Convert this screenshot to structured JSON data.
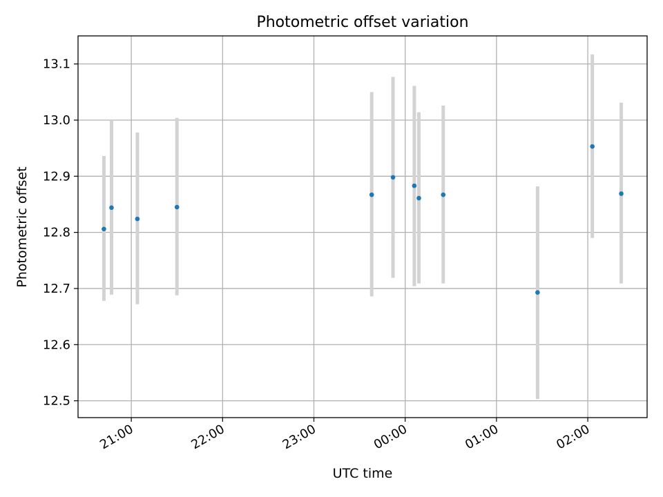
{
  "chart_data": {
    "type": "scatter",
    "title": "Photometric offset variation",
    "xlabel": "UTC time",
    "ylabel": "Photometric offset",
    "x_unit": "UTC time (HH:MM)",
    "xlim": [
      "20:25",
      "02:39"
    ],
    "ylim": [
      12.47,
      13.15
    ],
    "grid": true,
    "x_ticks": [
      "21:00",
      "22:00",
      "23:00",
      "00:00",
      "01:00",
      "02:00"
    ],
    "y_ticks": [
      "12.5",
      "12.6",
      "12.7",
      "12.8",
      "12.9",
      "13.0",
      "13.1"
    ],
    "series": [
      {
        "marker_color": "#1f77b4",
        "errorbar_color": "#d3d3d3",
        "points": [
          {
            "x": "20:42",
            "y": 12.806,
            "ylo": 12.678,
            "yhi": 12.936
          },
          {
            "x": "20:47",
            "y": 12.844,
            "ylo": 12.689,
            "yhi": 13.0
          },
          {
            "x": "21:04",
            "y": 12.824,
            "ylo": 12.672,
            "yhi": 12.978
          },
          {
            "x": "21:30",
            "y": 12.845,
            "ylo": 12.688,
            "yhi": 13.004
          },
          {
            "x": "23:38",
            "y": 12.867,
            "ylo": 12.686,
            "yhi": 13.05
          },
          {
            "x": "23:52",
            "y": 12.898,
            "ylo": 12.719,
            "yhi": 13.077
          },
          {
            "x": "00:06",
            "y": 12.883,
            "ylo": 12.704,
            "yhi": 13.061
          },
          {
            "x": "00:09",
            "y": 12.861,
            "ylo": 12.709,
            "yhi": 13.014
          },
          {
            "x": "00:25",
            "y": 12.867,
            "ylo": 12.709,
            "yhi": 13.026
          },
          {
            "x": "01:27",
            "y": 12.693,
            "ylo": 12.503,
            "yhi": 12.882
          },
          {
            "x": "02:03",
            "y": 12.953,
            "ylo": 12.79,
            "yhi": 13.117
          },
          {
            "x": "02:22",
            "y": 12.869,
            "ylo": 12.709,
            "yhi": 13.031
          }
        ]
      }
    ]
  }
}
